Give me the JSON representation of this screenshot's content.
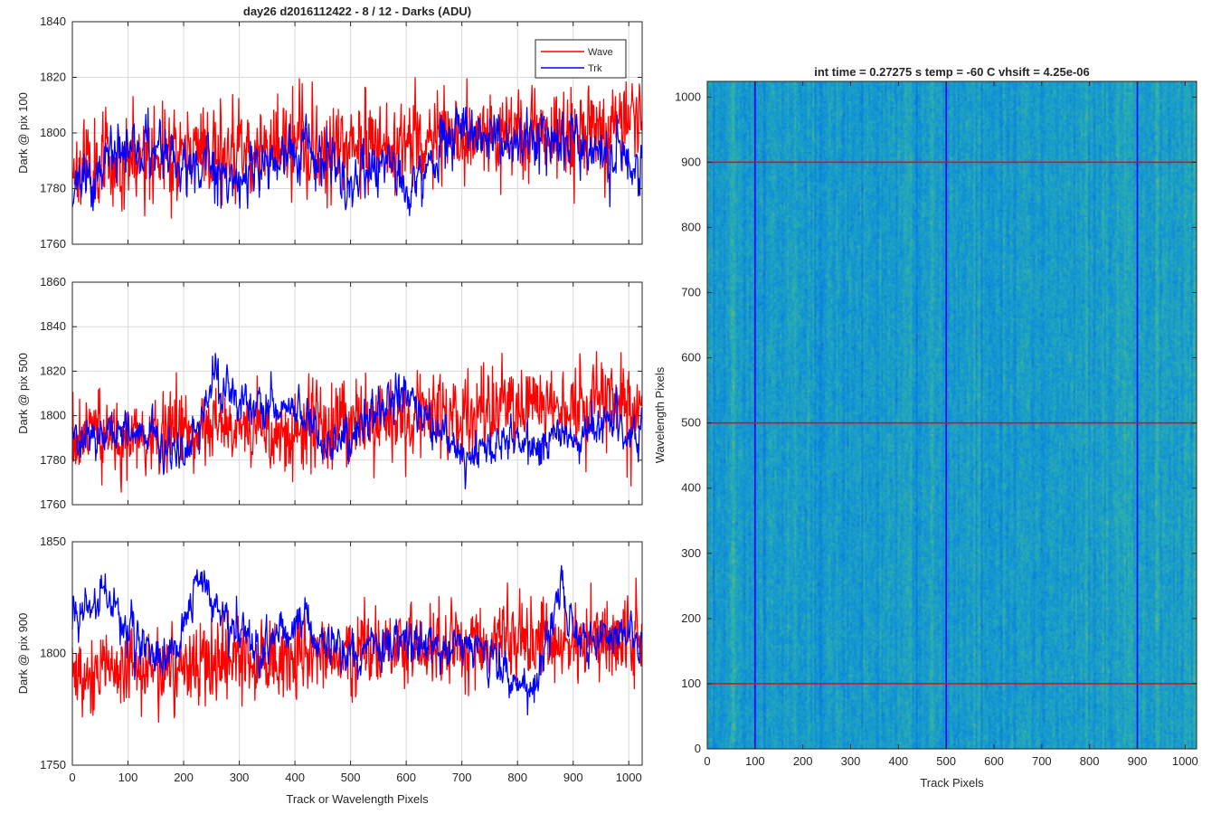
{
  "figure_title": "day26 d2016112422 - 8 / 12 - Darks (ADU)",
  "colors": {
    "wave": "#ff0000",
    "trk": "#0000ff",
    "grid": "#d9d9d9",
    "axis": "#262626"
  },
  "chart_data": [
    {
      "type": "line",
      "ylabel": "Dark @ pix 100",
      "xlabel": "",
      "xlim": [
        0,
        1024
      ],
      "ylim": [
        1760,
        1840
      ],
      "xticks": [
        0,
        100,
        200,
        300,
        400,
        500,
        600,
        700,
        800,
        900,
        1000
      ],
      "yticks": [
        1760,
        1780,
        1800,
        1820,
        1840
      ],
      "grid": true,
      "legend": {
        "position": "top-right",
        "entries": [
          "Wave",
          "Trk"
        ]
      },
      "series": [
        {
          "name": "Wave",
          "color": "#ff0000",
          "baseline": [
            [
              0,
              1788
            ],
            [
              200,
              1793
            ],
            [
              400,
              1795
            ],
            [
              600,
              1797
            ],
            [
              800,
              1799
            ],
            [
              1024,
              1803
            ]
          ],
          "noise": 8,
          "smooth": 0.15,
          "seed": 11
        },
        {
          "name": "Trk",
          "color": "#0000ff",
          "baseline": [
            [
              0,
              1778
            ],
            [
              100,
              1795
            ],
            [
              200,
              1790
            ],
            [
              300,
              1782
            ],
            [
              380,
              1793
            ],
            [
              450,
              1792
            ],
            [
              500,
              1782
            ],
            [
              560,
              1790
            ],
            [
              600,
              1780
            ],
            [
              650,
              1790
            ],
            [
              700,
              1798
            ],
            [
              800,
              1798
            ],
            [
              900,
              1797
            ],
            [
              1024,
              1785
            ]
          ],
          "noise": 5,
          "smooth": 0.55,
          "seed": 23
        }
      ]
    },
    {
      "type": "line",
      "ylabel": "Dark @ pix 500",
      "xlabel": "",
      "xlim": [
        0,
        1024
      ],
      "ylim": [
        1760,
        1860
      ],
      "xticks": [
        0,
        100,
        200,
        300,
        400,
        500,
        600,
        700,
        800,
        900,
        1000
      ],
      "yticks": [
        1760,
        1780,
        1800,
        1820,
        1840,
        1860
      ],
      "grid": true,
      "series": [
        {
          "name": "Wave",
          "color": "#ff0000",
          "baseline": [
            [
              0,
              1790
            ],
            [
              200,
              1792
            ],
            [
              400,
              1795
            ],
            [
              600,
              1800
            ],
            [
              800,
              1803
            ],
            [
              1024,
              1806
            ]
          ],
          "noise": 9,
          "smooth": 0.15,
          "seed": 37
        },
        {
          "name": "Trk",
          "color": "#0000ff",
          "baseline": [
            [
              0,
              1788
            ],
            [
              100,
              1795
            ],
            [
              200,
              1780
            ],
            [
              260,
              1818
            ],
            [
              300,
              1805
            ],
            [
              400,
              1803
            ],
            [
              450,
              1786
            ],
            [
              500,
              1790
            ],
            [
              600,
              1812
            ],
            [
              650,
              1795
            ],
            [
              700,
              1785
            ],
            [
              750,
              1785
            ],
            [
              800,
              1790
            ],
            [
              900,
              1790
            ],
            [
              950,
              1797
            ],
            [
              1024,
              1792
            ]
          ],
          "noise": 5,
          "smooth": 0.55,
          "seed": 41
        }
      ]
    },
    {
      "type": "line",
      "ylabel": "Dark @ pix 900",
      "xlabel": "Track or Wavelength Pixels",
      "xlim": [
        0,
        1024
      ],
      "ylim": [
        1750,
        1850
      ],
      "xticks": [
        0,
        100,
        200,
        300,
        400,
        500,
        600,
        700,
        800,
        900,
        1000
      ],
      "yticks": [
        1750,
        1800,
        1850
      ],
      "grid": true,
      "series": [
        {
          "name": "Wave",
          "color": "#ff0000",
          "baseline": [
            [
              0,
              1790
            ],
            [
              200,
              1795
            ],
            [
              400,
              1800
            ],
            [
              600,
              1802
            ],
            [
              800,
              1805
            ],
            [
              1024,
              1807
            ]
          ],
          "noise": 9,
          "smooth": 0.15,
          "seed": 53
        },
        {
          "name": "Trk",
          "color": "#0000ff",
          "baseline": [
            [
              0,
              1815
            ],
            [
              60,
              1828
            ],
            [
              100,
              1812
            ],
            [
              150,
              1795
            ],
            [
              200,
              1805
            ],
            [
              230,
              1835
            ],
            [
              270,
              1815
            ],
            [
              330,
              1800
            ],
            [
              400,
              1810
            ],
            [
              500,
              1800
            ],
            [
              600,
              1805
            ],
            [
              650,
              1800
            ],
            [
              700,
              1805
            ],
            [
              800,
              1790
            ],
            [
              820,
              1780
            ],
            [
              880,
              1830
            ],
            [
              900,
              1808
            ],
            [
              1024,
              1805
            ]
          ],
          "noise": 5,
          "smooth": 0.55,
          "seed": 67
        }
      ]
    },
    {
      "type": "heatmap",
      "title": "int time = 0.27275 s    temp = -60 C    vhsift = 4.25e-06",
      "xlabel": "Track Pixels",
      "ylabel": "Wavelength Pixels",
      "xlim": [
        0,
        1024
      ],
      "ylim": [
        0,
        1024
      ],
      "xticks": [
        0,
        100,
        200,
        300,
        400,
        500,
        600,
        700,
        800,
        900,
        1000
      ],
      "yticks": [
        0,
        100,
        200,
        300,
        400,
        500,
        600,
        700,
        800,
        900,
        1000
      ],
      "colormap": "parula",
      "marker_lines": {
        "vertical": {
          "x": [
            100,
            500,
            900
          ],
          "color": "#0000ff"
        },
        "horizontal": {
          "y": [
            100,
            500,
            900
          ],
          "color": "#ff0000"
        }
      }
    }
  ]
}
